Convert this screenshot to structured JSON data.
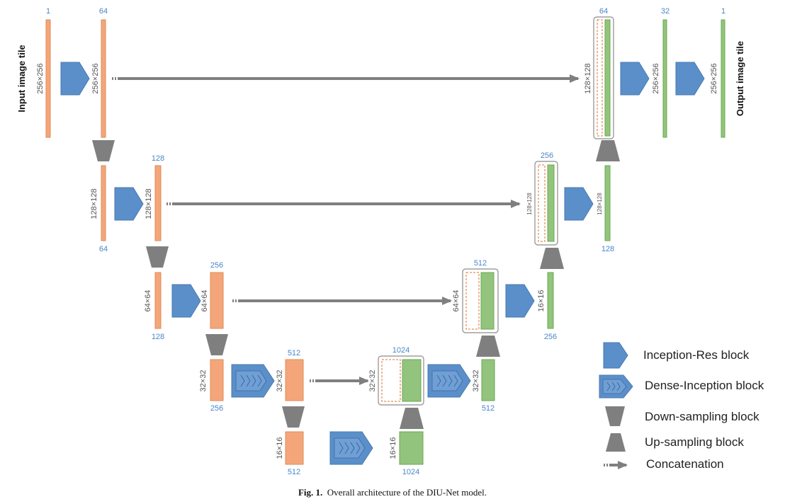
{
  "top_labels": {
    "input_channels": "1",
    "enc1_channels": "64",
    "dec1_concat_channels": "64",
    "dec1_mid_channels": "32",
    "output_channels": "1",
    "enc2_channels": "128",
    "dec2_concat_channels": "256",
    "enc3_channels": "256",
    "dec3_concat_channels": "512",
    "enc4_channels": "512",
    "bottleneck_concat_channels": "1024"
  },
  "bottom_labels": {
    "enc2_in_channels": "64",
    "dec2_out_channels": "128",
    "enc3_in_channels": "128",
    "dec3_out_channels": "256",
    "enc4_in_channels": "256",
    "dec4_out_channels": "512",
    "bottleneck_in_channels": "512",
    "bottleneck_out_channels": "1024"
  },
  "size_labels": {
    "s256a": "256×256",
    "s256b": "256×256",
    "s128dec": "128×128",
    "s256c": "256×256",
    "s256d": "256×256",
    "s128a": "128×128",
    "s128b": "128×128",
    "s128c": "128×128",
    "s128d": "128×128",
    "s64a": "64×64",
    "s64b": "64×64",
    "s64c": "64×64",
    "s16dec3": "16×16",
    "s32a": "32×32",
    "s32b": "32×32",
    "s32c": "32×32",
    "s32d": "32×32",
    "s16a": "16×16",
    "s16b": "16×16"
  },
  "side_titles": {
    "input": "Input image tile",
    "output": "Output image tile"
  },
  "legend": {
    "inception_res": "Inception-Res block",
    "dense_inception": "Dense-Inception block",
    "down_sampling": "Down-sampling block",
    "up_sampling": "Up-sampling block",
    "concatenation": "Concatenation"
  },
  "caption": {
    "prefix": "Fig. 1.",
    "text": "Overall architecture of the DIU-Net model."
  },
  "colors": {
    "encoder": "#f4a67a",
    "decoder": "#93c47d",
    "block_blue": "#5b8fc9",
    "gray": "#7f7f7f",
    "label_blue": "#4a86c8"
  }
}
